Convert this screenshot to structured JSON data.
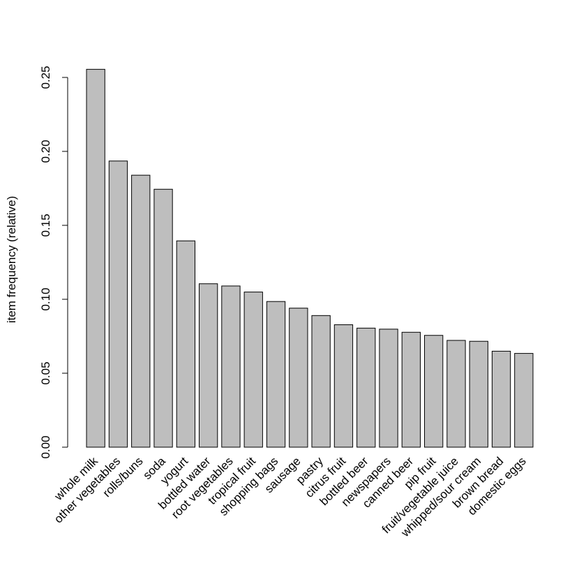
{
  "chart_data": {
    "type": "bar",
    "title": "",
    "xlabel": "",
    "ylabel": "item frequency (relative)",
    "ylim": [
      0,
      0.25
    ],
    "yticks": [
      "0.00",
      "0.05",
      "0.10",
      "0.15",
      "0.20",
      "0.25"
    ],
    "bar_color": "#bebebe",
    "grid": false,
    "categories": [
      "whole milk",
      "other vegetables",
      "rolls/buns",
      "soda",
      "yogurt",
      "bottled water",
      "root vegetables",
      "tropical fruit",
      "shopping bags",
      "sausage",
      "pastry",
      "citrus fruit",
      "bottled beer",
      "newspapers",
      "canned beer",
      "pip fruit",
      "fruit/vegetable juice",
      "whipped/sour cream",
      "brown bread",
      "domestic eggs"
    ],
    "values": [
      0.2555,
      0.1935,
      0.1839,
      0.1744,
      0.1395,
      0.1105,
      0.109,
      0.1049,
      0.0985,
      0.094,
      0.089,
      0.0828,
      0.0805,
      0.0798,
      0.0777,
      0.0756,
      0.0722,
      0.0716,
      0.0649,
      0.0634
    ]
  }
}
